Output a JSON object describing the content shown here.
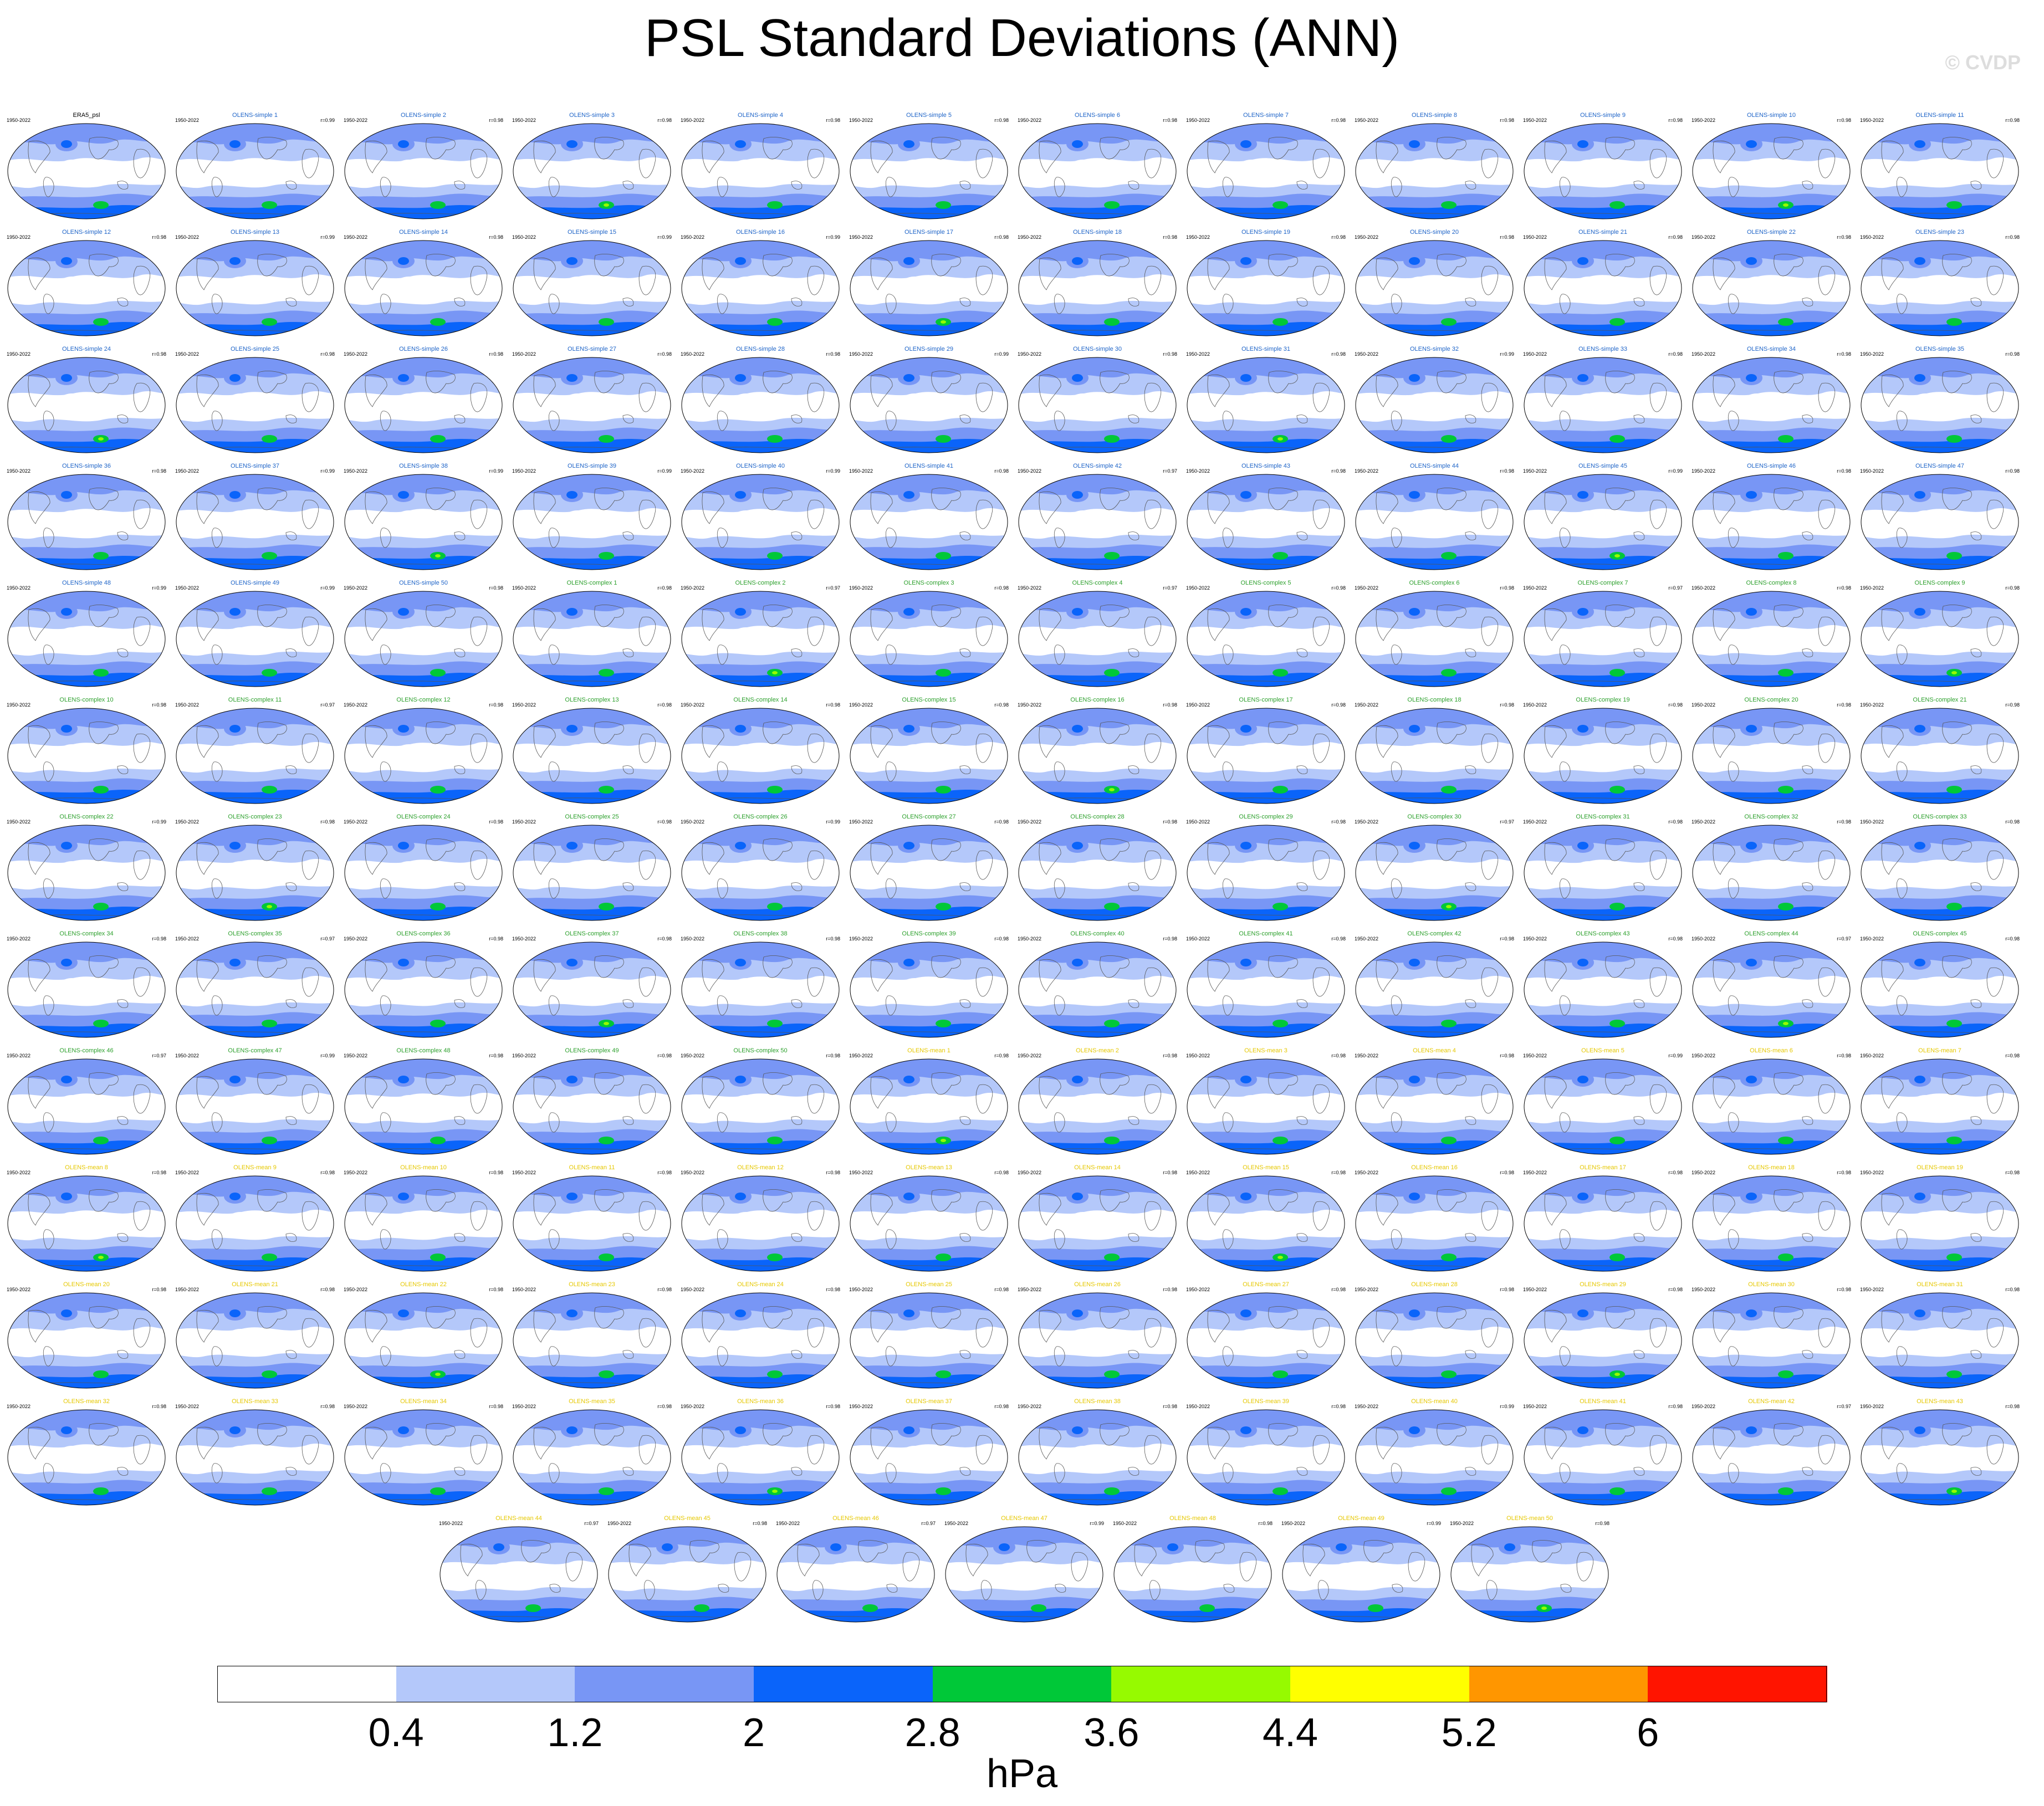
{
  "title": "PSL Standard Deviations (ANN)",
  "watermark": "© CVDP",
  "units": "hPa",
  "colorbar": {
    "levels": [
      "0.4",
      "1.2",
      "2",
      "2.8",
      "3.6",
      "4.4",
      "5.2",
      "6"
    ],
    "colors": [
      "#ffffff",
      "#b4c8fa",
      "#7896f5",
      "#0a64fa",
      "#00c838",
      "#96fa00",
      "#ffff00",
      "#ff9600",
      "#ff1400"
    ]
  },
  "chart_data": {
    "type": "heatmap",
    "title": "PSL Standard Deviations (ANN)",
    "units": "hPa",
    "contour_levels": [
      0.4,
      1.2,
      2,
      2.8,
      3.6,
      4.4,
      5.2,
      6
    ],
    "period": "1950-2022",
    "panels": [
      {
        "name": "ERA5_psl",
        "r": ""
      },
      {
        "name": "OLENS-simple 1",
        "r": "r=0.99"
      },
      {
        "name": "OLENS-simple 2",
        "r": "r=0.98"
      },
      {
        "name": "OLENS-simple 3",
        "r": "r=0.98"
      },
      {
        "name": "OLENS-simple 4",
        "r": "r=0.98"
      },
      {
        "name": "OLENS-simple 5",
        "r": "r=0.98"
      },
      {
        "name": "OLENS-simple 6",
        "r": "r=0.98"
      },
      {
        "name": "OLENS-simple 7",
        "r": "r=0.98"
      },
      {
        "name": "OLENS-simple 8",
        "r": "r=0.98"
      },
      {
        "name": "OLENS-simple 9",
        "r": "r=0.98"
      },
      {
        "name": "OLENS-simple 10",
        "r": "r=0.98"
      },
      {
        "name": "OLENS-simple 11",
        "r": "r=0.98"
      },
      {
        "name": "OLENS-simple 12",
        "r": "r=0.98"
      },
      {
        "name": "OLENS-simple 13",
        "r": "r=0.99"
      },
      {
        "name": "OLENS-simple 14",
        "r": "r=0.98"
      },
      {
        "name": "OLENS-simple 15",
        "r": "r=0.99"
      },
      {
        "name": "OLENS-simple 16",
        "r": "r=0.99"
      },
      {
        "name": "OLENS-simple 17",
        "r": "r=0.98"
      },
      {
        "name": "OLENS-simple 18",
        "r": "r=0.98"
      },
      {
        "name": "OLENS-simple 19",
        "r": "r=0.98"
      },
      {
        "name": "OLENS-simple 20",
        "r": "r=0.98"
      },
      {
        "name": "OLENS-simple 21",
        "r": "r=0.98"
      },
      {
        "name": "OLENS-simple 22",
        "r": "r=0.98"
      },
      {
        "name": "OLENS-simple 23",
        "r": "r=0.98"
      },
      {
        "name": "OLENS-simple 24",
        "r": "r=0.98"
      },
      {
        "name": "OLENS-simple 25",
        "r": "r=0.98"
      },
      {
        "name": "OLENS-simple 26",
        "r": "r=0.98"
      },
      {
        "name": "OLENS-simple 27",
        "r": "r=0.98"
      },
      {
        "name": "OLENS-simple 28",
        "r": "r=0.98"
      },
      {
        "name": "OLENS-simple 29",
        "r": "r=0.99"
      },
      {
        "name": "OLENS-simple 30",
        "r": "r=0.98"
      },
      {
        "name": "OLENS-simple 31",
        "r": "r=0.98"
      },
      {
        "name": "OLENS-simple 32",
        "r": "r=0.99"
      },
      {
        "name": "OLENS-simple 33",
        "r": "r=0.98"
      },
      {
        "name": "OLENS-simple 34",
        "r": "r=0.98"
      },
      {
        "name": "OLENS-simple 35",
        "r": "r=0.98"
      },
      {
        "name": "OLENS-simple 36",
        "r": "r=0.98"
      },
      {
        "name": "OLENS-simple 37",
        "r": "r=0.99"
      },
      {
        "name": "OLENS-simple 38",
        "r": "r=0.99"
      },
      {
        "name": "OLENS-simple 39",
        "r": "r=0.99"
      },
      {
        "name": "OLENS-simple 40",
        "r": "r=0.99"
      },
      {
        "name": "OLENS-simple 41",
        "r": "r=0.98"
      },
      {
        "name": "OLENS-simple 42",
        "r": "r=0.97"
      },
      {
        "name": "OLENS-simple 43",
        "r": "r=0.98"
      },
      {
        "name": "OLENS-simple 44",
        "r": "r=0.98"
      },
      {
        "name": "OLENS-simple 45",
        "r": "r=0.99"
      },
      {
        "name": "OLENS-simple 46",
        "r": "r=0.98"
      },
      {
        "name": "OLENS-simple 47",
        "r": "r=0.98"
      },
      {
        "name": "OLENS-simple 48",
        "r": "r=0.99"
      },
      {
        "name": "OLENS-simple 49",
        "r": "r=0.99"
      },
      {
        "name": "OLENS-simple 50",
        "r": "r=0.98"
      },
      {
        "name": "OLENS-complex 1",
        "r": "r=0.98"
      },
      {
        "name": "OLENS-complex 2",
        "r": "r=0.97"
      },
      {
        "name": "OLENS-complex 3",
        "r": "r=0.98"
      },
      {
        "name": "OLENS-complex 4",
        "r": "r=0.97"
      },
      {
        "name": "OLENS-complex 5",
        "r": "r=0.98"
      },
      {
        "name": "OLENS-complex 6",
        "r": "r=0.98"
      },
      {
        "name": "OLENS-complex 7",
        "r": "r=0.97"
      },
      {
        "name": "OLENS-complex 8",
        "r": "r=0.98"
      },
      {
        "name": "OLENS-complex 9",
        "r": "r=0.98"
      },
      {
        "name": "OLENS-complex 10",
        "r": "r=0.98"
      },
      {
        "name": "OLENS-complex 11",
        "r": "r=0.97"
      },
      {
        "name": "OLENS-complex 12",
        "r": "r=0.98"
      },
      {
        "name": "OLENS-complex 13",
        "r": "r=0.98"
      },
      {
        "name": "OLENS-complex 14",
        "r": "r=0.98"
      },
      {
        "name": "OLENS-complex 15",
        "r": "r=0.98"
      },
      {
        "name": "OLENS-complex 16",
        "r": "r=0.98"
      },
      {
        "name": "OLENS-complex 17",
        "r": "r=0.98"
      },
      {
        "name": "OLENS-complex 18",
        "r": "r=0.98"
      },
      {
        "name": "OLENS-complex 19",
        "r": "r=0.98"
      },
      {
        "name": "OLENS-complex 20",
        "r": "r=0.98"
      },
      {
        "name": "OLENS-complex 21",
        "r": "r=0.98"
      },
      {
        "name": "OLENS-complex 22",
        "r": "r=0.99"
      },
      {
        "name": "OLENS-complex 23",
        "r": "r=0.98"
      },
      {
        "name": "OLENS-complex 24",
        "r": "r=0.98"
      },
      {
        "name": "OLENS-complex 25",
        "r": "r=0.98"
      },
      {
        "name": "OLENS-complex 26",
        "r": "r=0.99"
      },
      {
        "name": "OLENS-complex 27",
        "r": "r=0.98"
      },
      {
        "name": "OLENS-complex 28",
        "r": "r=0.98"
      },
      {
        "name": "OLENS-complex 29",
        "r": "r=0.98"
      },
      {
        "name": "OLENS-complex 30",
        "r": "r=0.97"
      },
      {
        "name": "OLENS-complex 31",
        "r": "r=0.98"
      },
      {
        "name": "OLENS-complex 32",
        "r": "r=0.98"
      },
      {
        "name": "OLENS-complex 33",
        "r": "r=0.98"
      },
      {
        "name": "OLENS-complex 34",
        "r": "r=0.98"
      },
      {
        "name": "OLENS-complex 35",
        "r": "r=0.97"
      },
      {
        "name": "OLENS-complex 36",
        "r": "r=0.98"
      },
      {
        "name": "OLENS-complex 37",
        "r": "r=0.98"
      },
      {
        "name": "OLENS-complex 38",
        "r": "r=0.98"
      },
      {
        "name": "OLENS-complex 39",
        "r": "r=0.98"
      },
      {
        "name": "OLENS-complex 40",
        "r": "r=0.98"
      },
      {
        "name": "OLENS-complex 41",
        "r": "r=0.98"
      },
      {
        "name": "OLENS-complex 42",
        "r": "r=0.98"
      },
      {
        "name": "OLENS-complex 43",
        "r": "r=0.98"
      },
      {
        "name": "OLENS-complex 44",
        "r": "r=0.97"
      },
      {
        "name": "OLENS-complex 45",
        "r": "r=0.98"
      },
      {
        "name": "OLENS-complex 46",
        "r": "r=0.97"
      },
      {
        "name": "OLENS-complex 47",
        "r": "r=0.99"
      },
      {
        "name": "OLENS-complex 48",
        "r": "r=0.98"
      },
      {
        "name": "OLENS-complex 49",
        "r": "r=0.98"
      },
      {
        "name": "OLENS-complex 50",
        "r": "r=0.98"
      },
      {
        "name": "OLENS-mean 1",
        "r": "r=0.98"
      },
      {
        "name": "OLENS-mean 2",
        "r": "r=0.98"
      },
      {
        "name": "OLENS-mean 3",
        "r": "r=0.98"
      },
      {
        "name": "OLENS-mean 4",
        "r": "r=0.98"
      },
      {
        "name": "OLENS-mean 5",
        "r": "r=0.99"
      },
      {
        "name": "OLENS-mean 6",
        "r": "r=0.98"
      },
      {
        "name": "OLENS-mean 7",
        "r": "r=0.98"
      },
      {
        "name": "OLENS-mean 8",
        "r": "r=0.98"
      },
      {
        "name": "OLENS-mean 9",
        "r": "r=0.98"
      },
      {
        "name": "OLENS-mean 10",
        "r": "r=0.98"
      },
      {
        "name": "OLENS-mean 11",
        "r": "r=0.98"
      },
      {
        "name": "OLENS-mean 12",
        "r": "r=0.98"
      },
      {
        "name": "OLENS-mean 13",
        "r": "r=0.98"
      },
      {
        "name": "OLENS-mean 14",
        "r": "r=0.98"
      },
      {
        "name": "OLENS-mean 15",
        "r": "r=0.98"
      },
      {
        "name": "OLENS-mean 16",
        "r": "r=0.98"
      },
      {
        "name": "OLENS-mean 17",
        "r": "r=0.98"
      },
      {
        "name": "OLENS-mean 18",
        "r": "r=0.98"
      },
      {
        "name": "OLENS-mean 19",
        "r": "r=0.98"
      },
      {
        "name": "OLENS-mean 20",
        "r": "r=0.98"
      },
      {
        "name": "OLENS-mean 21",
        "r": "r=0.98"
      },
      {
        "name": "OLENS-mean 22",
        "r": "r=0.98"
      },
      {
        "name": "OLENS-mean 23",
        "r": "r=0.98"
      },
      {
        "name": "OLENS-mean 24",
        "r": "r=0.98"
      },
      {
        "name": "OLENS-mean 25",
        "r": "r=0.98"
      },
      {
        "name": "OLENS-mean 26",
        "r": "r=0.98"
      },
      {
        "name": "OLENS-mean 27",
        "r": "r=0.98"
      },
      {
        "name": "OLENS-mean 28",
        "r": "r=0.98"
      },
      {
        "name": "OLENS-mean 29",
        "r": "r=0.98"
      },
      {
        "name": "OLENS-mean 30",
        "r": "r=0.98"
      },
      {
        "name": "OLENS-mean 31",
        "r": "r=0.98"
      },
      {
        "name": "OLENS-mean 32",
        "r": "r=0.98"
      },
      {
        "name": "OLENS-mean 33",
        "r": "r=0.98"
      },
      {
        "name": "OLENS-mean 34",
        "r": "r=0.98"
      },
      {
        "name": "OLENS-mean 35",
        "r": "r=0.98"
      },
      {
        "name": "OLENS-mean 36",
        "r": "r=0.98"
      },
      {
        "name": "OLENS-mean 37",
        "r": "r=0.98"
      },
      {
        "name": "OLENS-mean 38",
        "r": "r=0.98"
      },
      {
        "name": "OLENS-mean 39",
        "r": "r=0.98"
      },
      {
        "name": "OLENS-mean 40",
        "r": "r=0.99"
      },
      {
        "name": "OLENS-mean 41",
        "r": "r=0.98"
      },
      {
        "name": "OLENS-mean 42",
        "r": "r=0.97"
      },
      {
        "name": "OLENS-mean 43",
        "r": "r=0.98"
      },
      {
        "name": "OLENS-mean 44",
        "r": "r=0.97"
      },
      {
        "name": "OLENS-mean 45",
        "r": "r=0.98"
      },
      {
        "name": "OLENS-mean 46",
        "r": "r=0.97"
      },
      {
        "name": "OLENS-mean 47",
        "r": "r=0.99"
      },
      {
        "name": "OLENS-mean 48",
        "r": "r=0.98"
      },
      {
        "name": "OLENS-mean 49",
        "r": "r=0.99"
      },
      {
        "name": "OLENS-mean 50",
        "r": "r=0.98"
      }
    ]
  }
}
